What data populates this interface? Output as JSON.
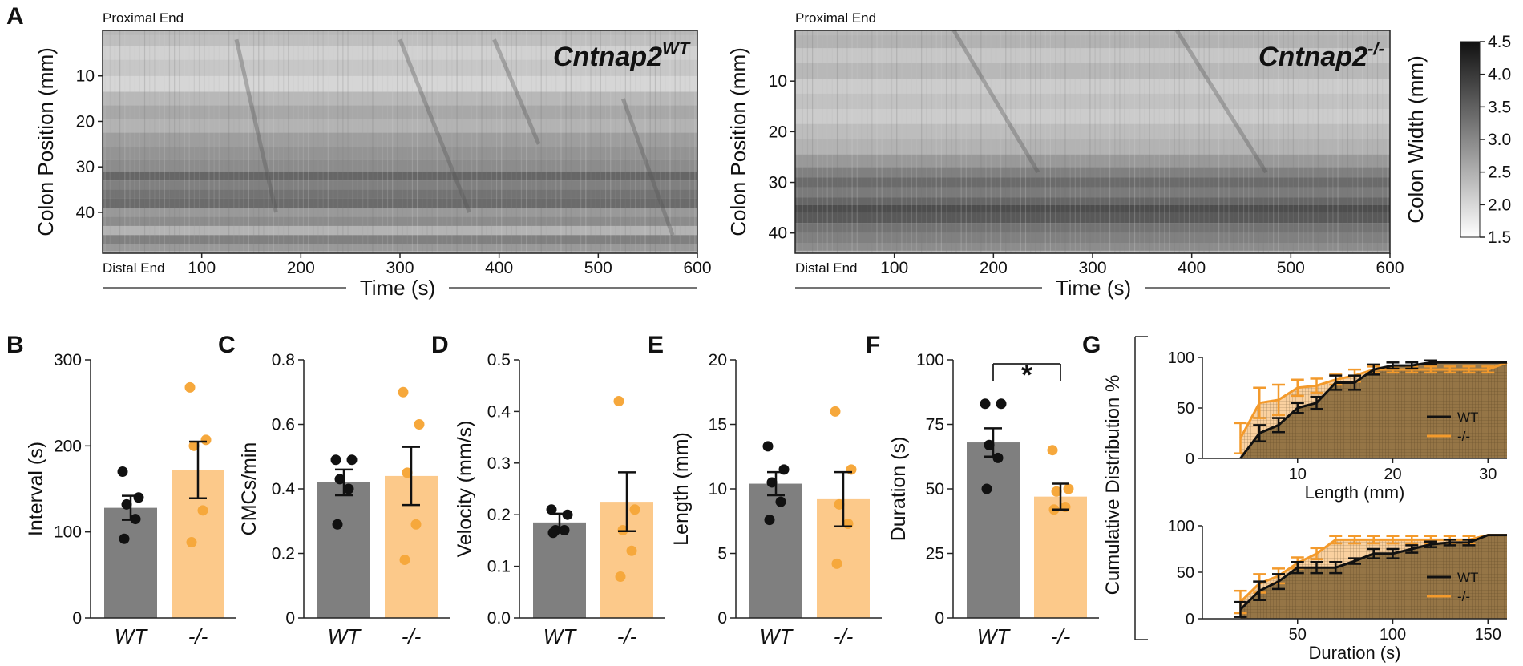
{
  "figure": {
    "panel_letters": {
      "A": "A",
      "B": "B",
      "C": "C",
      "D": "D",
      "E": "E",
      "F": "F",
      "G": "G"
    },
    "colors": {
      "wt": "#7f7f7f",
      "ko_bar": "#fcc98a",
      "ko_point": "#f6a83c",
      "ko_line": "#f39a2c",
      "wt_line": "#111111",
      "fill_brown": "#8a6a3c"
    }
  },
  "chart_data": [
    {
      "id": "A-left",
      "type": "heatmap",
      "title": "Cntnap2",
      "title_sup": "WT",
      "proximal_label": "Proximal End",
      "distal_label": "Distal End",
      "ylabel": "Colon Position (mm)",
      "xlabel": "Time (s)",
      "xlim": [
        0,
        600
      ],
      "xticks": [
        100,
        200,
        300,
        400,
        500,
        600
      ],
      "ylim": [
        0,
        49
      ],
      "yticks": [
        10,
        20,
        30,
        40
      ],
      "bands": [
        [
          2,
          0.75
        ],
        [
          5,
          0.82
        ],
        [
          8,
          0.78
        ],
        [
          12,
          0.84
        ],
        [
          15,
          0.72
        ],
        [
          18,
          0.66
        ],
        [
          21,
          0.7
        ],
        [
          24,
          0.62
        ],
        [
          27,
          0.58
        ],
        [
          30,
          0.55
        ],
        [
          32,
          0.4
        ],
        [
          34,
          0.5
        ],
        [
          36,
          0.45
        ],
        [
          38,
          0.42
        ],
        [
          40,
          0.6
        ],
        [
          42,
          0.55
        ],
        [
          44,
          0.7
        ],
        [
          46,
          0.5
        ],
        [
          48,
          0.6
        ]
      ]
    },
    {
      "id": "A-right",
      "type": "heatmap",
      "title": "Cntnap2",
      "title_sup": "-/-",
      "proximal_label": "Proximal End",
      "distal_label": "Distal End",
      "ylabel": "Colon Position (mm)",
      "xlabel": "Time (s)",
      "xlim": [
        0,
        600
      ],
      "xticks": [
        100,
        200,
        300,
        400,
        500,
        600
      ],
      "ylim": [
        0,
        44
      ],
      "yticks": [
        10,
        20,
        30,
        40
      ],
      "bands": [
        [
          2,
          0.7
        ],
        [
          5,
          0.78
        ],
        [
          8,
          0.72
        ],
        [
          11,
          0.8
        ],
        [
          14,
          0.76
        ],
        [
          17,
          0.8
        ],
        [
          20,
          0.74
        ],
        [
          23,
          0.7
        ],
        [
          26,
          0.6
        ],
        [
          28,
          0.5
        ],
        [
          30,
          0.42
        ],
        [
          32,
          0.48
        ],
        [
          34,
          0.4
        ],
        [
          35,
          0.3
        ],
        [
          37,
          0.35
        ],
        [
          39,
          0.45
        ],
        [
          41,
          0.5
        ],
        [
          43,
          0.55
        ]
      ],
      "colorbar": {
        "label": "Colon Width (mm)",
        "range": [
          1.5,
          4.5
        ],
        "ticks": [
          "1.5",
          "2.0",
          "2.5",
          "3.0",
          "3.5",
          "4.0",
          "4.5"
        ]
      }
    },
    {
      "id": "B",
      "type": "bar",
      "ylabel": "Interval (s)",
      "categories": [
        "WT",
        "-/-"
      ],
      "values": [
        128,
        172
      ],
      "sem": [
        14,
        33
      ],
      "points": [
        [
          170,
          140,
          132,
          115,
          92
        ],
        [
          268,
          207,
          200,
          125,
          88
        ]
      ],
      "ylim": [
        0,
        300
      ],
      "yticks": [
        "0",
        "100",
        "200",
        "300"
      ],
      "significance": ""
    },
    {
      "id": "C",
      "type": "bar",
      "ylabel": "CMCs/min",
      "categories": [
        "WT",
        "-/-"
      ],
      "values": [
        0.42,
        0.44
      ],
      "sem": [
        0.04,
        0.09
      ],
      "points": [
        [
          0.49,
          0.49,
          0.43,
          0.4,
          0.29
        ],
        [
          0.7,
          0.6,
          0.45,
          0.29,
          0.18
        ]
      ],
      "ylim": [
        0,
        0.8
      ],
      "yticks": [
        "0",
        "0.2",
        "0.4",
        "0.6",
        "0.8"
      ],
      "significance": ""
    },
    {
      "id": "D",
      "type": "bar",
      "ylabel": "Velocity (mm/s)",
      "categories": [
        "WT",
        "-/-"
      ],
      "values": [
        0.185,
        0.225
      ],
      "sem": [
        0.017,
        0.057
      ],
      "points": [
        [
          0.21,
          0.2,
          0.17,
          0.17,
          0.165
        ],
        [
          0.42,
          0.21,
          0.17,
          0.13,
          0.08
        ]
      ],
      "ylim": [
        0,
        0.5
      ],
      "yticks": [
        "0.0",
        "0.1",
        "0.2",
        "0.3",
        "0.4",
        "0.5"
      ],
      "significance": ""
    },
    {
      "id": "E",
      "type": "bar",
      "ylabel": "Length (mm)",
      "categories": [
        "WT",
        "-/-"
      ],
      "values": [
        10.4,
        9.2
      ],
      "sem": [
        0.9,
        2.1
      ],
      "points": [
        [
          13.3,
          11.5,
          10.5,
          9.0,
          7.6
        ],
        [
          16.0,
          11.5,
          8.8,
          7.3,
          4.2
        ]
      ],
      "ylim": [
        0,
        20
      ],
      "yticks": [
        "0",
        "5",
        "10",
        "15",
        "20"
      ],
      "significance": ""
    },
    {
      "id": "F",
      "type": "bar",
      "ylabel": "Duration (s)",
      "categories": [
        "WT",
        "-/-"
      ],
      "values": [
        68,
        47
      ],
      "sem": [
        5.5,
        5
      ],
      "points": [
        [
          83,
          83,
          67,
          62,
          50
        ],
        [
          65,
          50,
          49,
          43,
          42
        ]
      ],
      "ylim": [
        0,
        100
      ],
      "yticks": [
        "0",
        "25",
        "50",
        "75",
        "100"
      ],
      "significance": "*"
    },
    {
      "id": "G-top",
      "type": "line",
      "ylabel": "Cumulative Distribution %",
      "xlabel": "Length (mm)",
      "xlim": [
        0,
        32
      ],
      "xticks": [
        10,
        20,
        30
      ],
      "ylim": [
        0,
        100
      ],
      "yticks": [
        "0",
        "50",
        "100"
      ],
      "series": [
        {
          "name": "WT",
          "x": [
            4,
            6,
            8,
            10,
            12,
            14,
            16,
            18,
            20,
            22,
            24,
            32
          ],
          "y": [
            0,
            25,
            33,
            50,
            55,
            75,
            75,
            88,
            92,
            92,
            95,
            95
          ],
          "err": [
            0,
            8,
            7,
            5,
            6,
            7,
            7,
            5,
            3,
            3,
            2,
            0
          ]
        },
        {
          "name": "-/-",
          "x": [
            4,
            6,
            8,
            10,
            12,
            14,
            16,
            18,
            20,
            22,
            24,
            26,
            28,
            30,
            32
          ],
          "y": [
            20,
            55,
            58,
            70,
            72,
            78,
            82,
            88,
            88,
            88,
            88,
            88,
            88,
            88,
            95
          ],
          "err": [
            15,
            15,
            15,
            8,
            7,
            5,
            6,
            3,
            3,
            3,
            3,
            3,
            3,
            3,
            0
          ]
        }
      ]
    },
    {
      "id": "G-bottom",
      "type": "line",
      "ylabel": "",
      "xlabel": "Duration (s)",
      "xlim": [
        0,
        160
      ],
      "xticks": [
        50,
        100,
        150
      ],
      "ylim": [
        0,
        100
      ],
      "yticks": [
        "0",
        "50",
        "100"
      ],
      "series": [
        {
          "name": "WT",
          "x": [
            20,
            30,
            40,
            50,
            60,
            70,
            80,
            90,
            100,
            110,
            120,
            130,
            140,
            150,
            160
          ],
          "y": [
            10,
            30,
            40,
            55,
            55,
            55,
            62,
            70,
            70,
            75,
            80,
            82,
            82,
            90,
            90
          ],
          "err": [
            8,
            10,
            8,
            6,
            6,
            6,
            3,
            5,
            5,
            4,
            3,
            3,
            3,
            0,
            0
          ]
        },
        {
          "name": "-/-",
          "x": [
            20,
            30,
            40,
            50,
            60,
            70,
            80,
            90,
            100,
            110,
            120,
            130,
            140,
            150,
            160
          ],
          "y": [
            18,
            38,
            46,
            60,
            70,
            85,
            85,
            85,
            85,
            85,
            85,
            85,
            85,
            90,
            90
          ],
          "err": [
            12,
            10,
            8,
            6,
            6,
            4,
            4,
            4,
            4,
            4,
            4,
            4,
            4,
            0,
            0
          ]
        }
      ]
    }
  ]
}
